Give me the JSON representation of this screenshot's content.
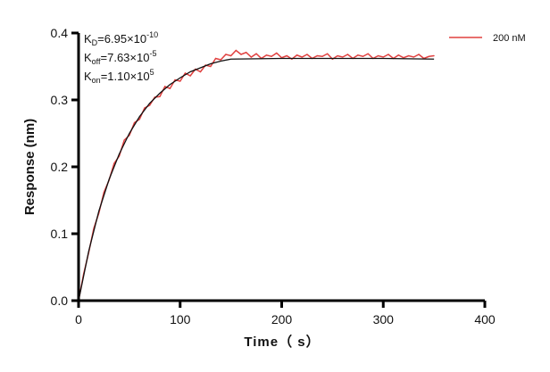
{
  "chart_data": {
    "type": "line",
    "xlabel": "Time（ s）",
    "ylabel": "Response (nm)",
    "xlim": [
      0,
      400
    ],
    "ylim": [
      0,
      0.4
    ],
    "xticks": [
      "0",
      "100",
      "200",
      "300",
      "400"
    ],
    "yticks": [
      "0.0",
      "0.1",
      "0.2",
      "0.3",
      "0.4"
    ],
    "grid": false,
    "legend_position": "top-right",
    "annotations": {
      "kd": {
        "label": "K",
        "sub": "D",
        "value": "=6.95×10",
        "exp": "-10"
      },
      "koff": {
        "label": "K",
        "sub": "off",
        "value": "=7.63×10",
        "exp": "-5"
      },
      "kon": {
        "label": "K",
        "sub": "on",
        "value": "=1.10×10",
        "exp": "5"
      }
    },
    "series": [
      {
        "name": "200 nM",
        "color": "#e0403f",
        "x": [
          0,
          5,
          10,
          15,
          20,
          25,
          30,
          35,
          40,
          45,
          50,
          55,
          60,
          65,
          70,
          75,
          80,
          85,
          90,
          95,
          100,
          105,
          110,
          115,
          120,
          125,
          130,
          135,
          140,
          145,
          150,
          155,
          160,
          165,
          170,
          175,
          180,
          185,
          190,
          195,
          200,
          205,
          210,
          215,
          220,
          225,
          230,
          235,
          240,
          245,
          250,
          255,
          260,
          265,
          270,
          275,
          280,
          285,
          290,
          295,
          300,
          305,
          310,
          315,
          320,
          325,
          330,
          335,
          340,
          345,
          350
        ],
        "y": [
          0,
          0.04,
          0.072,
          0.108,
          0.131,
          0.162,
          0.18,
          0.205,
          0.216,
          0.24,
          0.247,
          0.266,
          0.271,
          0.288,
          0.292,
          0.304,
          0.305,
          0.32,
          0.317,
          0.33,
          0.328,
          0.34,
          0.336,
          0.346,
          0.342,
          0.352,
          0.35,
          0.362,
          0.36,
          0.368,
          0.366,
          0.374,
          0.368,
          0.371,
          0.364,
          0.369,
          0.362,
          0.367,
          0.365,
          0.37,
          0.363,
          0.366,
          0.361,
          0.367,
          0.364,
          0.368,
          0.362,
          0.366,
          0.365,
          0.369,
          0.361,
          0.366,
          0.364,
          0.368,
          0.362,
          0.367,
          0.365,
          0.369,
          0.362,
          0.366,
          0.364,
          0.368,
          0.362,
          0.367,
          0.363,
          0.366,
          0.364,
          0.368,
          0.362,
          0.365,
          0.366
        ]
      }
    ],
    "fit": {
      "color": "#111111",
      "x": [
        0,
        10,
        20,
        30,
        40,
        50,
        60,
        70,
        80,
        90,
        100,
        110,
        120,
        130,
        140,
        150,
        200,
        250,
        300,
        350
      ],
      "y": [
        0,
        0.074,
        0.134,
        0.181,
        0.219,
        0.25,
        0.275,
        0.295,
        0.31,
        0.323,
        0.333,
        0.342,
        0.348,
        0.354,
        0.358,
        0.361,
        0.362,
        0.362,
        0.362,
        0.361
      ]
    }
  }
}
